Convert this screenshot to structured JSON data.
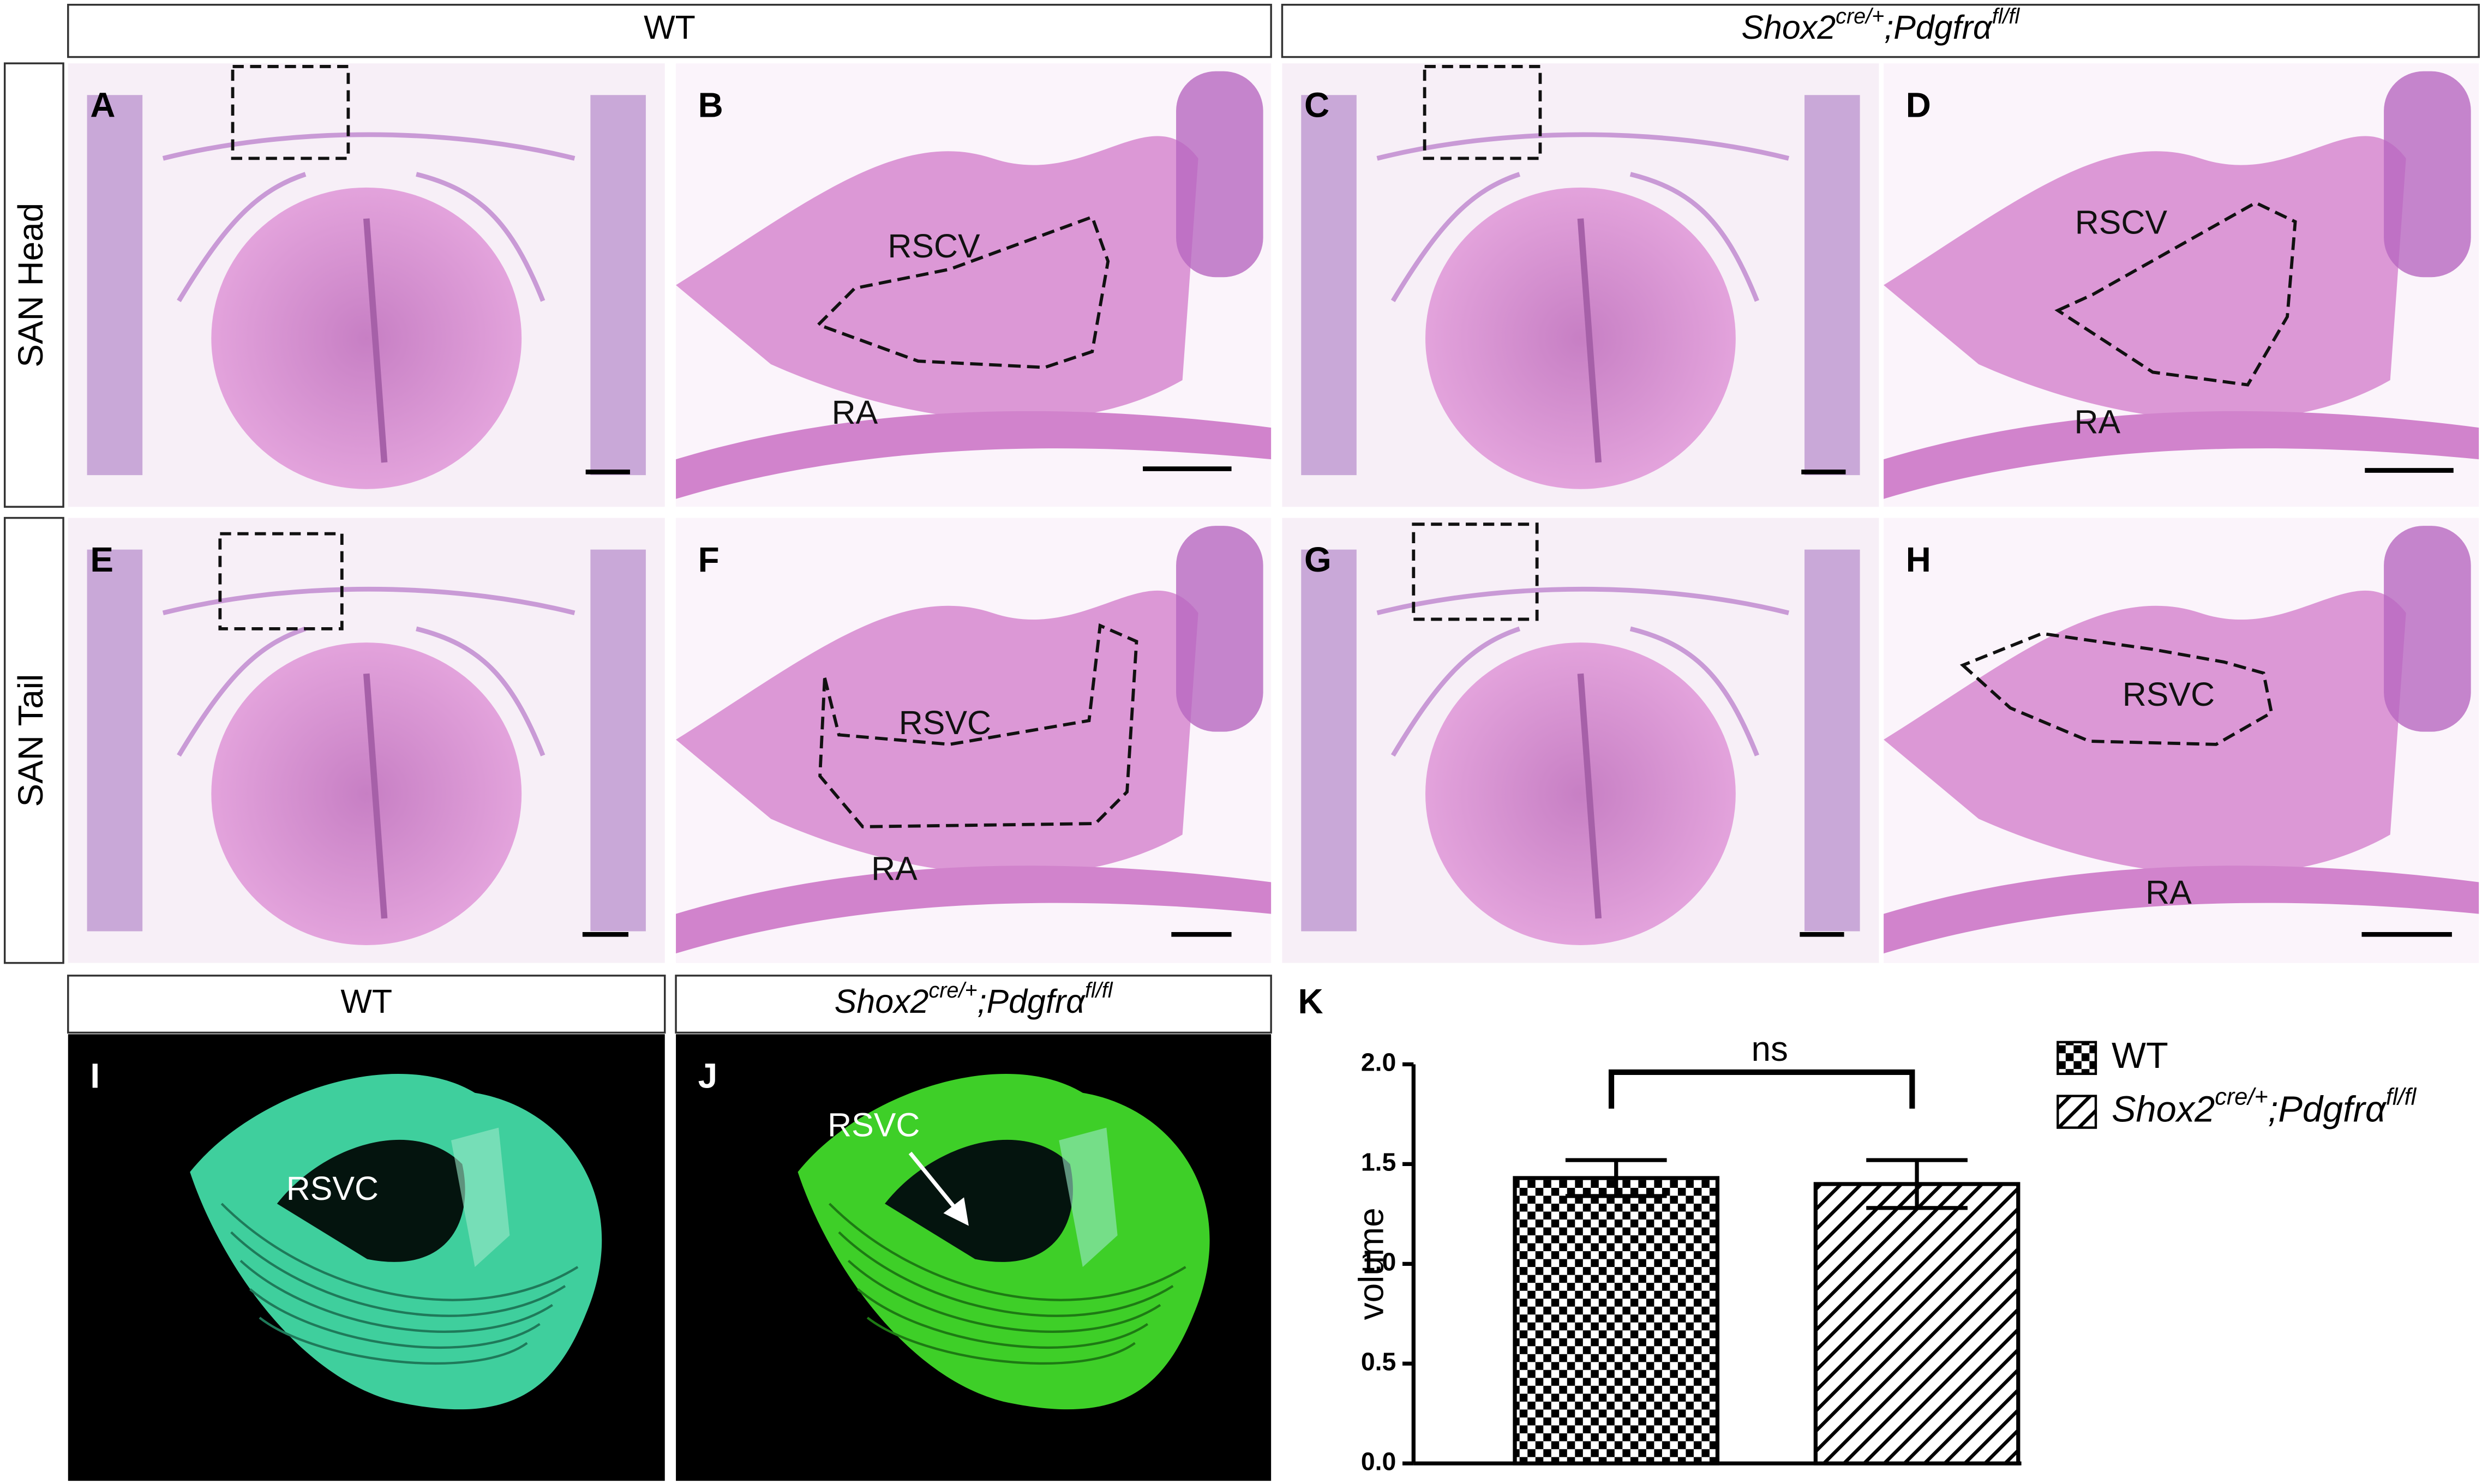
{
  "column_headers": [
    [
      "WT"
    ],
    [
      "Shox2",
      "cre/+",
      ";Pdgfrα",
      "fl/fl"
    ]
  ],
  "row_labels": [
    "SAN Head",
    "SAN Tail"
  ],
  "panels": [
    {
      "letter": "A"
    },
    {
      "letter": "B",
      "labels": [
        "RSCV",
        "RA"
      ]
    },
    {
      "letter": "C"
    },
    {
      "letter": "D",
      "labels": [
        "RSCV",
        "RA"
      ]
    },
    {
      "letter": "E"
    },
    {
      "letter": "F",
      "labels": [
        "RSVC",
        "RA"
      ]
    },
    {
      "letter": "G"
    },
    {
      "letter": "H",
      "labels": [
        "RSVC",
        "RA"
      ]
    },
    {
      "letter": "I",
      "labels": [
        "RSVC"
      ]
    },
    {
      "letter": "J",
      "labels": [
        "RSVC"
      ]
    },
    {
      "letter": "K"
    }
  ],
  "bottom_headers": [
    [
      "WT"
    ],
    [
      "Shox2",
      "cre/+",
      ";Pdgfrα",
      "fl/fl"
    ]
  ],
  "chart_data": {
    "type": "bar",
    "ylabel": "volume",
    "annotation": "ns",
    "ylim": [
      0,
      2.0
    ],
    "yticks": [
      {
        "value": 0,
        "label": "0.0"
      },
      0.5,
      {
        "value": 1,
        "label": "1.0"
      },
      1.5,
      {
        "value": 2,
        "label": "2.0"
      }
    ],
    "series": [
      {
        "name": [
          "WT"
        ],
        "color": "#000000",
        "pattern": "checker",
        "values": [
          1.43
        ],
        "errors": [
          0.09
        ]
      },
      {
        "name": [
          "Shox2",
          "cre/+",
          ";Pdgfrα",
          "fl/fl"
        ],
        "color": "#000000",
        "pattern": "hatch",
        "values": [
          1.4
        ],
        "errors": [
          0.12
        ]
      }
    ]
  }
}
